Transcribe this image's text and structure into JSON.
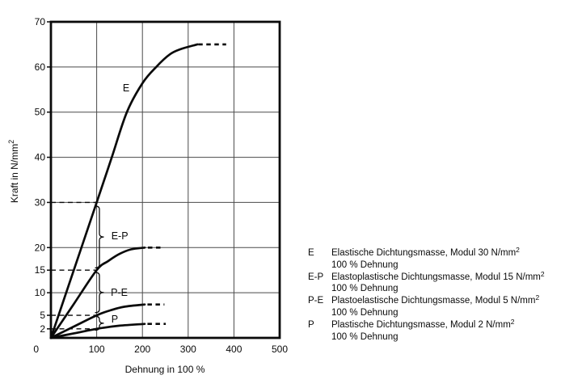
{
  "chart_data": {
    "type": "line",
    "title": "",
    "xlabel": "Dehnung in 100 %",
    "ylabel": "Kraft in N/mm²",
    "ylabel_base": "Kraft in N/mm",
    "ylabel_sup": "2",
    "xlim": [
      0,
      500
    ],
    "ylim": [
      0,
      70
    ],
    "x_ticks": [
      100,
      200,
      300,
      400,
      500
    ],
    "y_ticks": [
      2,
      5,
      10,
      15,
      20,
      30,
      40,
      50,
      60,
      70
    ],
    "origin_label": "0",
    "x_gridlines": [
      100,
      200,
      300,
      400
    ],
    "y_gridlines": [
      10,
      20,
      30,
      40,
      50,
      60
    ],
    "grid": true,
    "series": [
      {
        "name": "E",
        "modulus_at_100pct": 30,
        "points": [
          [
            0,
            0
          ],
          [
            50,
            15
          ],
          [
            100,
            30
          ],
          [
            133,
            40
          ],
          [
            166,
            50
          ],
          [
            200,
            56.4
          ],
          [
            230,
            60
          ],
          [
            260,
            62.8
          ],
          [
            285,
            64
          ],
          [
            320,
            65
          ]
        ],
        "dashed_extension": [
          [
            322,
            65
          ],
          [
            383,
            65
          ]
        ],
        "curve_label": {
          "text": "E",
          "x": 157,
          "y": 54.6
        }
      },
      {
        "name": "E-P",
        "modulus_at_100pct": 15,
        "points": [
          [
            0,
            0
          ],
          [
            50,
            7.5
          ],
          [
            100,
            15
          ],
          [
            125,
            17
          ],
          [
            150,
            18.6
          ],
          [
            175,
            19.6
          ],
          [
            205,
            20
          ]
        ],
        "dashed_extension": [
          [
            212,
            20
          ],
          [
            247,
            20
          ]
        ]
      },
      {
        "name": "P-E",
        "modulus_at_100pct": 5,
        "points": [
          [
            0,
            0
          ],
          [
            50,
            2.5
          ],
          [
            100,
            5
          ],
          [
            130,
            6.1
          ],
          [
            160,
            6.9
          ],
          [
            205,
            7.4
          ]
        ],
        "dashed_extension": [
          [
            211,
            7.4
          ],
          [
            248,
            7.4
          ]
        ]
      },
      {
        "name": "P",
        "modulus_at_100pct": 2,
        "points": [
          [
            0,
            0
          ],
          [
            50,
            1
          ],
          [
            100,
            2
          ],
          [
            150,
            2.7
          ],
          [
            205,
            3.1
          ]
        ],
        "dashed_extension": [
          [
            211,
            3.1
          ],
          [
            251,
            3.1
          ]
        ]
      }
    ],
    "guide_dashes": [
      {
        "y": 30,
        "x_from": 0,
        "x_to": 100
      },
      {
        "y": 15,
        "x_from": 0,
        "x_to": 100
      },
      {
        "y": 5,
        "x_from": 0,
        "x_to": 100
      },
      {
        "y": 2,
        "x_from": 0,
        "x_to": 98
      }
    ],
    "braces": [
      {
        "x": 106,
        "y_top": 29.2,
        "y_bottom": 15.5,
        "label": "E-P",
        "label_x": 132,
        "label_y": 21.8
      },
      {
        "x": 106,
        "y_top": 14.5,
        "y_bottom": 5.6,
        "label": "P-E",
        "label_x": 131,
        "label_y": 9.3
      },
      {
        "x": 106,
        "y_top": 4.8,
        "y_bottom": 1.7,
        "label": "P",
        "label_x": 132,
        "label_y": 3.4
      }
    ],
    "legend_position": "right",
    "legend": {
      "items": [
        {
          "key": "E",
          "text": "Elastische Dichtungsmasse, Modul 30 N/mm",
          "sup": "2",
          "line2": "100 % Dehnung"
        },
        {
          "key": "E-P",
          "text": "Elastoplastische Dichtungsmasse, Modul 15 N/mm",
          "sup": "2",
          "line2": "100 % Dehnung"
        },
        {
          "key": "P-E",
          "text": "Plastoelastische Dichtungsmasse, Modul 5 N/mm",
          "sup": "2",
          "line2": "100 % Dehnung"
        },
        {
          "key": "P",
          "text": "Plastische Dichtungsmasse, Modul 2 N/mm",
          "sup": "2",
          "line2": "100 % Dehnung"
        }
      ]
    }
  },
  "colors": {
    "ink": "#0a0a0a",
    "grid": "#4a4a4a",
    "background": "#ffffff"
  }
}
